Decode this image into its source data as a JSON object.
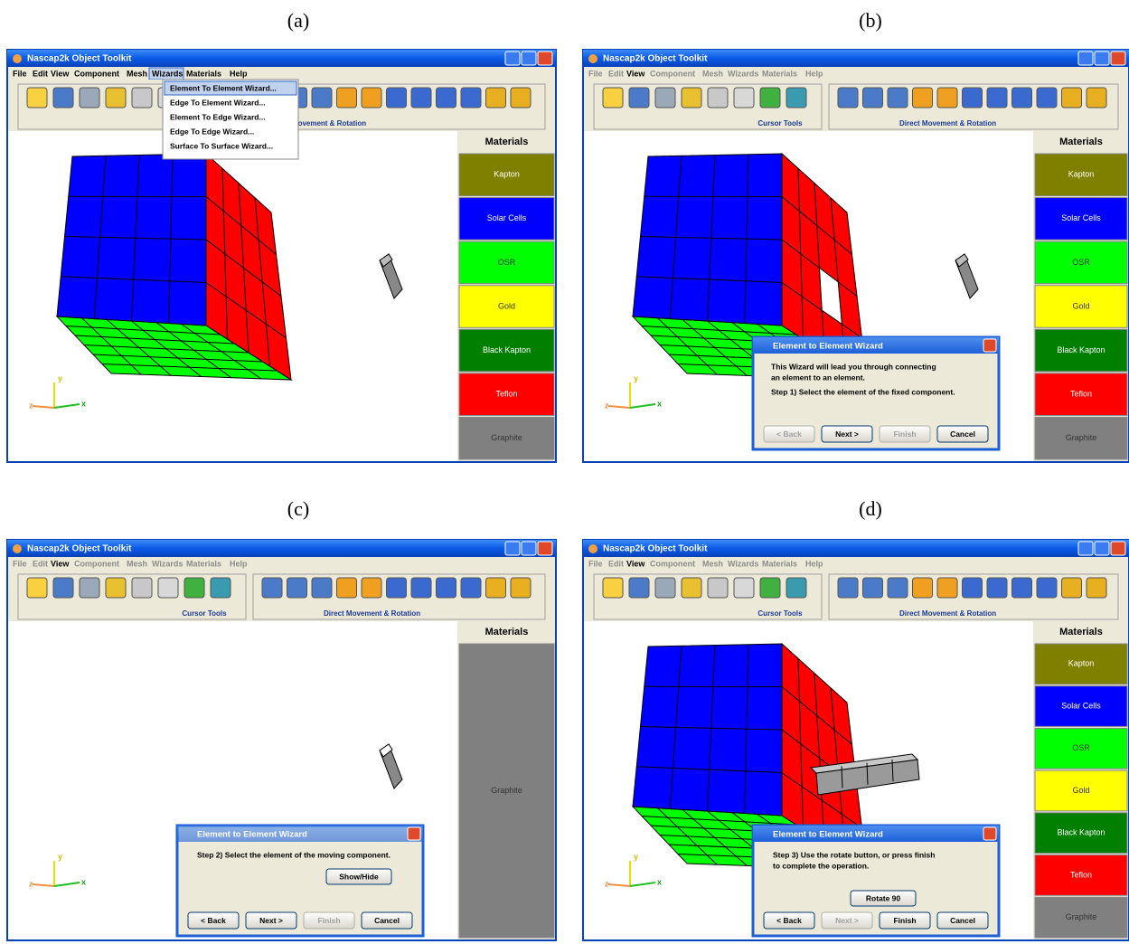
{
  "panels": [
    {
      "label": "(a)",
      "window_title": "Nascap2k Object Toolkit",
      "menu": [
        "File",
        "Edit",
        "View",
        "Component",
        "Mesh",
        "Wizards",
        "Materials",
        "Help"
      ],
      "toolbar_captions": [
        "Direct Movement & Rotation"
      ],
      "dropdown": [
        "Element To Element Wizard...",
        "Edge To Element Wizard...",
        "Element To Edge Wizard...",
        "Edge To Edge Wizard...",
        "Surface To Surface Wizard..."
      ],
      "axes": [
        "z",
        "y",
        "x"
      ],
      "materials_header": "Materials",
      "materials": [
        {
          "name": "Kapton",
          "color": "#808000"
        },
        {
          "name": "Solar Cells",
          "color": "#0000ff"
        },
        {
          "name": "OSR",
          "color": "#00ff00"
        },
        {
          "name": "Gold",
          "color": "#ffff00"
        },
        {
          "name": "Black Kapton",
          "color": "#007f00"
        },
        {
          "name": "Teflon",
          "color": "#ff0000"
        },
        {
          "name": "Graphite",
          "color": "#808080"
        }
      ]
    },
    {
      "label": "(b)",
      "window_title": "Nascap2k Object Toolkit",
      "menu": [
        "File",
        "Edit",
        "View",
        "Component",
        "Mesh",
        "Wizards",
        "Materials",
        "Help"
      ],
      "toolbar_captions": [
        "Cursor Tools",
        "Direct Movement & Rotation"
      ],
      "axes": [
        "z",
        "y",
        "x"
      ],
      "materials_header": "Materials",
      "materials": [
        {
          "name": "Kapton",
          "color": "#808000"
        },
        {
          "name": "Solar Cells",
          "color": "#0000ff"
        },
        {
          "name": "OSR",
          "color": "#00ff00"
        },
        {
          "name": "Gold",
          "color": "#ffff00"
        },
        {
          "name": "Black Kapton",
          "color": "#007f00"
        },
        {
          "name": "Teflon",
          "color": "#ff0000"
        },
        {
          "name": "Graphite",
          "color": "#808080"
        }
      ],
      "dialog": {
        "title": "Element to Element Wizard",
        "lines": [
          "This Wizard will lead you through connecting",
          "an element to an element.",
          "Step 1)  Select the element of the fixed component."
        ],
        "buttons": [
          "< Back",
          "Next >",
          "Finish",
          "Cancel"
        ],
        "buttons_enabled": [
          false,
          true,
          false,
          true
        ]
      }
    },
    {
      "label": "(c)",
      "window_title": "Nascap2k Object Toolkit",
      "menu": [
        "File",
        "Edit",
        "View",
        "Component",
        "Mesh",
        "Wizards",
        "Materials",
        "Help"
      ],
      "toolbar_captions": [
        "Cursor Tools",
        "Direct Movement & Rotation"
      ],
      "axes": [
        "z",
        "y",
        "x"
      ],
      "materials_header": "Materials",
      "materials": [
        {
          "name": "Graphite",
          "color": "#808080"
        }
      ],
      "dialog": {
        "title": "Element to Element Wizard",
        "lines": [
          "Step 2)  Select the element of the moving component."
        ],
        "action": "Show/Hide",
        "buttons": [
          "< Back",
          "Next >",
          "Finish",
          "Cancel"
        ],
        "buttons_enabled": [
          true,
          true,
          false,
          true
        ]
      }
    },
    {
      "label": "(d)",
      "window_title": "Nascap2k Object Toolkit",
      "menu": [
        "File",
        "Edit",
        "View",
        "Component",
        "Mesh",
        "Wizards",
        "Materials",
        "Help"
      ],
      "toolbar_captions": [
        "Cursor Tools",
        "Direct Movement & Rotation"
      ],
      "axes": [
        "z",
        "y",
        "x"
      ],
      "materials_header": "Materials",
      "materials": [
        {
          "name": "Kapton",
          "color": "#808000"
        },
        {
          "name": "Solar Cells",
          "color": "#0000ff"
        },
        {
          "name": "OSR",
          "color": "#00ff00"
        },
        {
          "name": "Gold",
          "color": "#ffff00"
        },
        {
          "name": "Black Kapton",
          "color": "#007f00"
        },
        {
          "name": "Teflon",
          "color": "#ff0000"
        },
        {
          "name": "Graphite",
          "color": "#808080"
        }
      ],
      "dialog": {
        "title": "Element to Element Wizard",
        "lines": [
          "Step 3)  Use the rotate button, or press finish",
          "to complete the operation."
        ],
        "action": "Rotate 90",
        "buttons": [
          "< Back",
          "Next >",
          "Finish",
          "Cancel"
        ],
        "buttons_enabled": [
          true,
          false,
          true,
          true
        ]
      }
    }
  ]
}
